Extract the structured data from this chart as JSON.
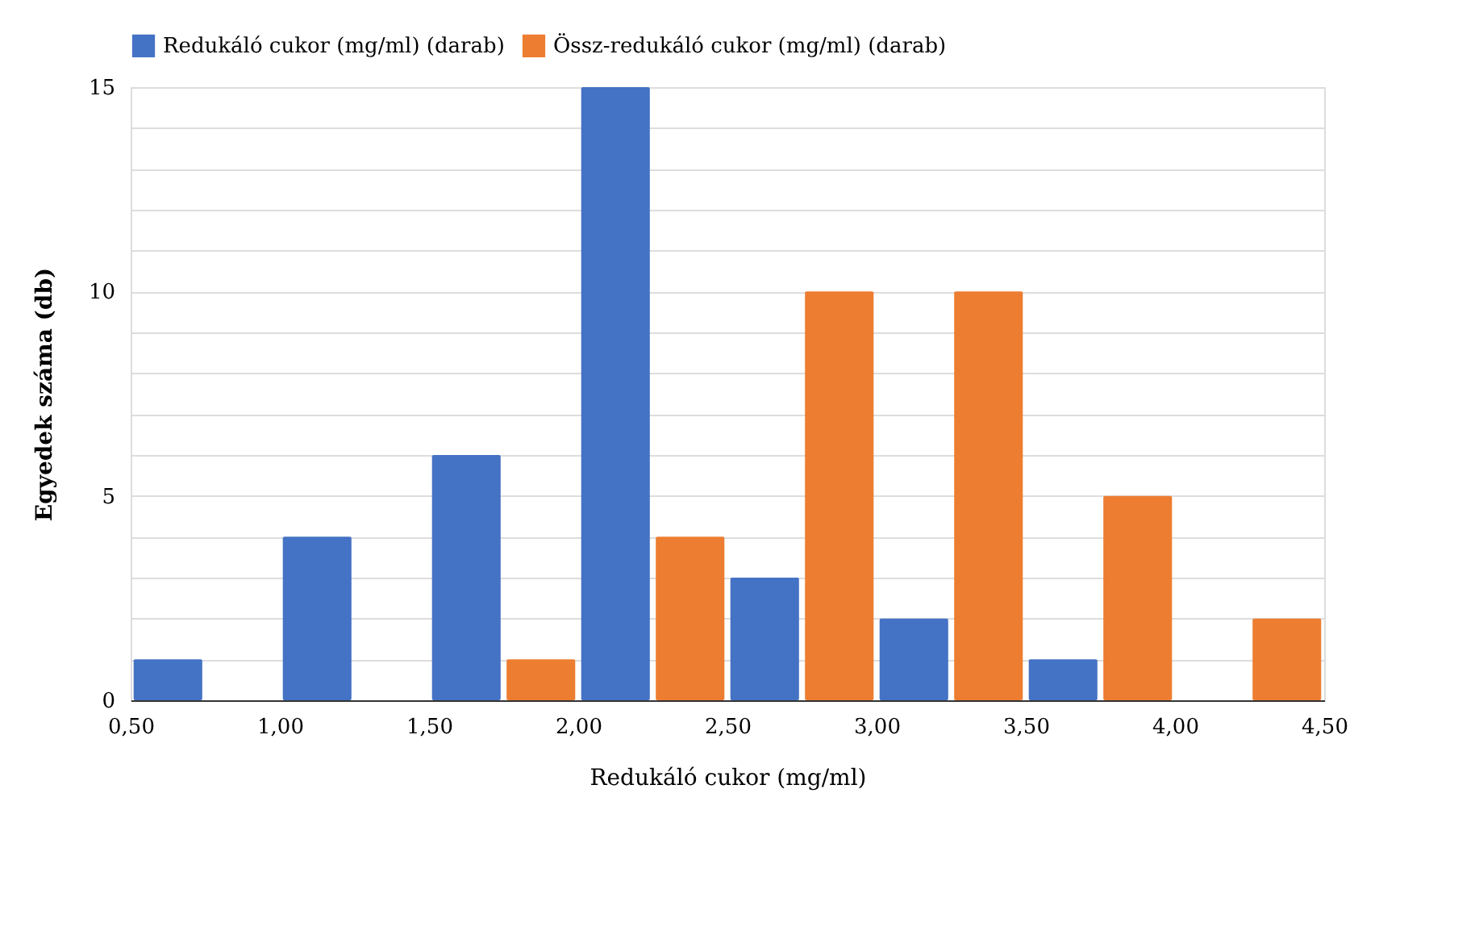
{
  "chart_data": {
    "type": "histogram",
    "xlabel": "Redukáló cukor (mg/ml)",
    "ylabel": "Egyedek száma (db)",
    "bins": [
      0.5,
      1.0,
      1.5,
      2.0,
      2.5,
      3.0,
      3.5,
      4.0,
      4.5
    ],
    "series": [
      {
        "name": "Redukáló cukor (mg/ml) (darab)",
        "color": "#4472c4",
        "values": [
          1,
          4,
          6,
          15,
          3,
          2,
          1,
          0
        ]
      },
      {
        "name": "Össz-redukáló cukor (mg/ml) (darab)",
        "color": "#ed7d31",
        "values": [
          0,
          0,
          1,
          4,
          10,
          10,
          5,
          2
        ]
      }
    ],
    "xlim": [
      0.5,
      4.5
    ],
    "xticks": [
      {
        "value": 0.5,
        "label": "0,50"
      },
      {
        "value": 1.0,
        "label": "1,00"
      },
      {
        "value": 1.5,
        "label": "1,50"
      },
      {
        "value": 2.0,
        "label": "2,00"
      },
      {
        "value": 2.5,
        "label": "2,50"
      },
      {
        "value": 3.0,
        "label": "3,00"
      },
      {
        "value": 3.5,
        "label": "3,50"
      },
      {
        "value": 4.0,
        "label": "4,00"
      },
      {
        "value": 4.5,
        "label": "4,50"
      }
    ],
    "ylim": [
      0,
      15
    ],
    "yticks": [
      0,
      {
        "value": 1,
        "label": null
      },
      {
        "value": 2,
        "label": null
      },
      {
        "value": 3,
        "label": null
      },
      {
        "value": 4,
        "label": null
      },
      5,
      {
        "value": 6,
        "label": null
      },
      {
        "value": 7,
        "label": null
      },
      {
        "value": 8,
        "label": null
      },
      {
        "value": 9,
        "label": null
      },
      10,
      {
        "value": 11,
        "label": null
      },
      {
        "value": 12,
        "label": null
      },
      {
        "value": 13,
        "label": null
      },
      {
        "value": 14,
        "label": null
      },
      15
    ],
    "grid": "y",
    "legend": "top"
  }
}
